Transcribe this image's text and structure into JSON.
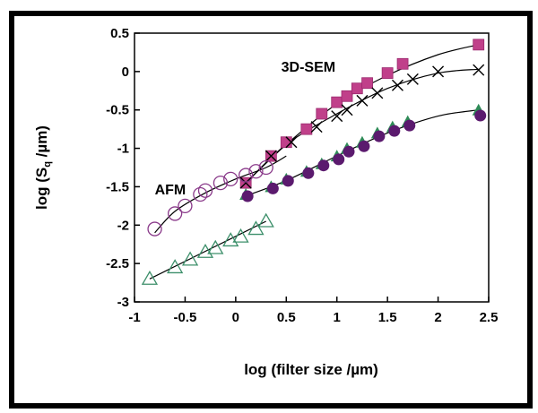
{
  "chart_data": {
    "type": "scatter",
    "title": "",
    "xlabel": "log (filter size  /µm)",
    "ylabel": "log (S",
    "ylabel_sub": "q",
    "ylabel_unit": " /µm)",
    "xlim": [
      -1,
      2.5
    ],
    "ylim": [
      -3,
      0.5
    ],
    "xticks": [
      "-1",
      "-0.5",
      "0",
      "0.5",
      "1",
      "1.5",
      "2",
      "2.5"
    ],
    "yticks": [
      "0.5",
      "0",
      "-0.5",
      "-1",
      "-1.5",
      "-2",
      "-2.5",
      "-3"
    ],
    "grid": false,
    "legend": "none",
    "annotations": [
      {
        "text": "AFM",
        "x": -0.8,
        "y": -1.6
      },
      {
        "text": "3D-SEM",
        "x": 0.45,
        "y": 0.0
      }
    ],
    "series": [
      {
        "marker": "square",
        "color": "#c0408a",
        "x": [
          0.1,
          0.35,
          0.5,
          0.7,
          0.85,
          1.0,
          1.1,
          1.2,
          1.3,
          1.5,
          1.65,
          2.4
        ],
        "y": [
          -1.45,
          -1.1,
          -0.92,
          -0.75,
          -0.55,
          -0.4,
          -0.32,
          -0.22,
          -0.15,
          -0.02,
          0.1,
          0.35
        ],
        "fit": [
          [
            0.1,
            -1.45
          ],
          [
            0.5,
            -0.95
          ],
          [
            1.0,
            -0.42
          ],
          [
            1.5,
            -0.05
          ],
          [
            2.0,
            0.22
          ],
          [
            2.4,
            0.35
          ]
        ]
      },
      {
        "marker": "x",
        "color": "#000000",
        "x": [
          0.1,
          0.35,
          0.55,
          0.8,
          1.0,
          1.1,
          1.25,
          1.4,
          1.6,
          1.75,
          2.0,
          2.4
        ],
        "y": [
          -1.45,
          -1.1,
          -0.92,
          -0.72,
          -0.58,
          -0.5,
          -0.38,
          -0.28,
          -0.18,
          -0.1,
          0.0,
          0.02
        ],
        "fit": [
          [
            0.1,
            -1.45
          ],
          [
            0.5,
            -0.95
          ],
          [
            1.0,
            -0.55
          ],
          [
            1.5,
            -0.22
          ],
          [
            2.0,
            -0.02
          ],
          [
            2.4,
            0.03
          ]
        ]
      },
      {
        "marker": "triangle-filled",
        "color": "#2e8b57",
        "x": [
          0.1,
          0.35,
          0.5,
          0.7,
          0.85,
          1.0,
          1.1,
          1.25,
          1.4,
          1.55,
          1.7,
          2.4
        ],
        "y": [
          -1.6,
          -1.5,
          -1.4,
          -1.3,
          -1.2,
          -1.1,
          -1.0,
          -0.92,
          -0.8,
          -0.72,
          -0.65,
          -0.5
        ],
        "fit": [
          [
            0.1,
            -1.62
          ],
          [
            0.5,
            -1.42
          ],
          [
            1.0,
            -1.1
          ],
          [
            1.5,
            -0.8
          ],
          [
            2.0,
            -0.58
          ],
          [
            2.4,
            -0.5
          ]
        ]
      },
      {
        "marker": "circle-filled",
        "color": "#5b1a6e",
        "x": [
          0.1,
          0.35,
          0.5,
          0.7,
          0.85,
          1.0,
          1.1,
          1.25,
          1.4,
          1.55,
          1.7,
          2.4
        ],
        "y": [
          -1.6,
          -1.5,
          -1.4,
          -1.3,
          -1.2,
          -1.12,
          -1.02,
          -0.95,
          -0.82,
          -0.75,
          -0.68,
          -0.55
        ],
        "fit": []
      },
      {
        "marker": "circle-open",
        "color": "#8a3a8a",
        "x": [
          -0.8,
          -0.6,
          -0.5,
          -0.35,
          -0.3,
          -0.15,
          -0.05,
          0.1,
          0.2,
          0.3
        ],
        "y": [
          -2.05,
          -1.85,
          -1.75,
          -1.6,
          -1.55,
          -1.45,
          -1.4,
          -1.35,
          -1.3,
          -1.25
        ],
        "fit": [
          [
            -0.8,
            -2.1
          ],
          [
            -0.6,
            -1.82
          ],
          [
            -0.3,
            -1.58
          ],
          [
            0.0,
            -1.4
          ],
          [
            0.3,
            -1.25
          ],
          [
            0.5,
            -1.1
          ]
        ]
      },
      {
        "marker": "triangle-open",
        "color": "#3c8f6a",
        "x": [
          -0.85,
          -0.6,
          -0.45,
          -0.3,
          -0.2,
          -0.05,
          0.05,
          0.2,
          0.3
        ],
        "y": [
          -2.7,
          -2.55,
          -2.45,
          -2.35,
          -2.3,
          -2.2,
          -2.15,
          -2.05,
          -1.95
        ],
        "fit": [
          [
            -0.85,
            -2.7
          ],
          [
            0.3,
            -1.95
          ]
        ]
      }
    ]
  }
}
